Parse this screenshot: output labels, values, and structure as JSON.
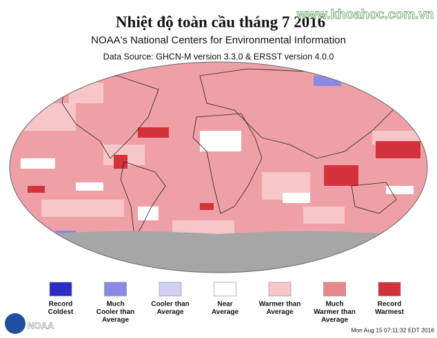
{
  "header": {
    "title": "Nhiệt độ toàn cầu tháng 7 2016",
    "watermark": "www.khoahoc.com.vn",
    "subtitle": "NOAA's National Centers for Environmental Information",
    "source": "Data Source: GHCN-M version 3.3.0 & ERSST version 4.0.0"
  },
  "legend": [
    {
      "lines": [
        "Record",
        "Coldest"
      ],
      "color": "#2b2bc8"
    },
    {
      "lines": [
        "Much",
        "Cooler than",
        "Average"
      ],
      "color": "#8a8ae6"
    },
    {
      "lines": [
        "Cooler than",
        "Average"
      ],
      "color": "#d0d0f4"
    },
    {
      "lines": [
        "Near",
        "Average"
      ],
      "color": "#ffffff"
    },
    {
      "lines": [
        "Warmer than",
        "Average"
      ],
      "color": "#f7c6c8"
    },
    {
      "lines": [
        "Much",
        "Warmer than",
        "Average"
      ],
      "color": "#e7868b"
    },
    {
      "lines": [
        "Record",
        "Warmest"
      ],
      "color": "#d4323a"
    }
  ],
  "footer": {
    "logo": "NOAA",
    "timestamp": "Mon Aug 15 07:11:32 EDT 2016"
  }
}
